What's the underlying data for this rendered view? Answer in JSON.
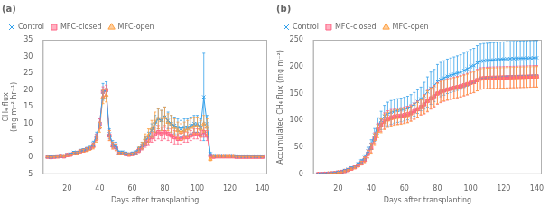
{
  "chart_data": [
    {
      "type": "line",
      "title": "(a)",
      "x_label": "Days after transplanting",
      "y_label": "CH₄ flux\n(mg m⁻² hr⁻¹)",
      "x": [
        8,
        10,
        12,
        14,
        16,
        18,
        20,
        22,
        24,
        26,
        28,
        30,
        32,
        34,
        36,
        38,
        40,
        42,
        44,
        46,
        48,
        50,
        52,
        54,
        56,
        58,
        60,
        62,
        64,
        66,
        68,
        70,
        72,
        74,
        76,
        78,
        80,
        82,
        84,
        86,
        88,
        90,
        92,
        94,
        96,
        98,
        100,
        102,
        104,
        106,
        108,
        110,
        112,
        114,
        116,
        118,
        120,
        122,
        124,
        126,
        128,
        130,
        132,
        134,
        136,
        138,
        140
      ],
      "xlim": [
        5,
        143
      ],
      "xticks": [
        20,
        40,
        60,
        80,
        100,
        120,
        140
      ],
      "ylim": [
        -5,
        35
      ],
      "yticks": [
        -5,
        0,
        5,
        10,
        15,
        20,
        25,
        30,
        35
      ],
      "grid": false,
      "legend": "upper left",
      "series": [
        {
          "name": "Control",
          "marker": "x",
          "values": [
            0.2,
            0.1,
            0.3,
            0.3,
            0.5,
            0.4,
            0.8,
            1.0,
            1.5,
            1.5,
            2.0,
            2.2,
            2.5,
            3.0,
            4.0,
            6.5,
            10.0,
            19.5,
            20.0,
            7.0,
            4.0,
            3.5,
            1.5,
            1.5,
            1.2,
            1.0,
            1.2,
            1.5,
            2.5,
            3.5,
            5.0,
            6.0,
            8.0,
            10.0,
            11.5,
            11.0,
            12.0,
            11.0,
            10.0,
            9.5,
            9.0,
            8.5,
            9.0,
            9.0,
            9.5,
            10.0,
            10.0,
            9.0,
            18.0,
            10.0,
            1.0,
            0.5,
            0.5,
            0.5,
            0.5,
            0.5,
            0.5,
            0.5,
            0.3,
            0.3,
            0.3,
            0.3,
            0.3,
            0.3,
            0.3,
            0.3,
            0.3
          ],
          "errors": [
            0.1,
            0.1,
            0.1,
            0.1,
            0.1,
            0.1,
            0.2,
            0.2,
            0.3,
            0.3,
            0.4,
            0.4,
            0.5,
            0.6,
            0.8,
            1.0,
            1.5,
            2.5,
            2.5,
            1.5,
            1.0,
            1.0,
            0.4,
            0.4,
            0.4,
            0.3,
            0.4,
            0.5,
            0.8,
            1.0,
            1.2,
            1.5,
            2.0,
            2.5,
            3.0,
            3.0,
            3.0,
            2.5,
            2.5,
            2.5,
            2.5,
            2.5,
            2.5,
            2.5,
            2.5,
            2.5,
            2.5,
            2.5,
            13.0,
            2.5,
            0.5,
            0.3,
            0.2,
            0.2,
            0.2,
            0.2,
            0.2,
            0.2,
            0.1,
            0.1,
            0.1,
            0.1,
            0.1,
            0.1,
            0.1,
            0.1,
            0.1
          ]
        },
        {
          "name": "MFC-closed",
          "marker": "square",
          "values": [
            0.2,
            0.1,
            0.2,
            0.3,
            0.4,
            0.3,
            0.7,
            0.8,
            1.2,
            1.3,
            1.8,
            2.0,
            2.3,
            2.8,
            3.5,
            6.0,
            10.0,
            19.5,
            20.0,
            6.5,
            3.5,
            3.0,
            1.2,
            1.2,
            1.0,
            0.8,
            1.0,
            1.2,
            2.0,
            3.0,
            4.0,
            5.0,
            6.0,
            7.0,
            7.5,
            7.0,
            7.5,
            7.0,
            6.5,
            6.0,
            5.5,
            5.5,
            6.0,
            6.0,
            6.5,
            7.0,
            7.0,
            6.5,
            7.5,
            6.5,
            0.5,
            0.2,
            0.3,
            0.3,
            0.3,
            0.3,
            0.3,
            0.3,
            0.2,
            0.2,
            0.2,
            0.2,
            0.2,
            0.2,
            0.2,
            0.2,
            0.2
          ],
          "errors": [
            0.1,
            0.1,
            0.1,
            0.1,
            0.1,
            0.1,
            0.2,
            0.2,
            0.3,
            0.3,
            0.4,
            0.4,
            0.5,
            0.6,
            0.8,
            1.0,
            1.5,
            1.5,
            1.5,
            1.5,
            1.0,
            1.0,
            0.3,
            0.3,
            0.3,
            0.3,
            0.3,
            0.4,
            0.6,
            0.8,
            1.0,
            1.2,
            1.5,
            2.0,
            2.0,
            2.0,
            2.0,
            2.0,
            2.0,
            2.0,
            1.5,
            1.5,
            1.5,
            1.5,
            1.5,
            1.5,
            1.5,
            1.5,
            1.5,
            1.5,
            0.4,
            0.2,
            0.2,
            0.2,
            0.2,
            0.2,
            0.2,
            0.2,
            0.1,
            0.1,
            0.1,
            0.1,
            0.1,
            0.1,
            0.1,
            0.1,
            0.1
          ]
        },
        {
          "name": "MFC-open",
          "marker": "triangle",
          "values": [
            0.2,
            0.1,
            0.2,
            0.2,
            0.4,
            0.3,
            0.6,
            0.8,
            1.2,
            1.3,
            1.8,
            2.0,
            2.2,
            2.7,
            3.3,
            5.5,
            9.0,
            18.0,
            18.5,
            6.5,
            3.5,
            3.0,
            1.2,
            1.2,
            1.0,
            0.8,
            1.0,
            1.2,
            2.5,
            3.5,
            5.5,
            6.5,
            8.5,
            10.5,
            11.5,
            11.0,
            12.0,
            10.5,
            10.0,
            9.0,
            8.0,
            7.5,
            8.0,
            8.5,
            9.0,
            9.5,
            9.5,
            8.5,
            10.0,
            9.0,
            -0.5,
            0.3,
            0.3,
            0.3,
            0.3,
            0.3,
            0.3,
            0.3,
            0.2,
            0.2,
            0.2,
            0.2,
            0.2,
            0.2,
            0.2,
            0.2,
            0.2
          ],
          "errors": [
            0.1,
            0.1,
            0.1,
            0.1,
            0.1,
            0.1,
            0.2,
            0.2,
            0.3,
            0.3,
            0.4,
            0.4,
            0.5,
            0.6,
            0.8,
            1.0,
            1.5,
            2.0,
            2.0,
            1.5,
            1.0,
            1.0,
            0.3,
            0.3,
            0.3,
            0.3,
            0.3,
            0.4,
            0.8,
            1.0,
            1.5,
            2.0,
            2.5,
            3.0,
            3.0,
            3.0,
            3.0,
            2.5,
            2.5,
            2.5,
            2.5,
            2.5,
            2.5,
            2.5,
            2.5,
            2.5,
            2.5,
            2.5,
            2.5,
            2.5,
            0.5,
            0.2,
            0.2,
            0.2,
            0.2,
            0.2,
            0.2,
            0.2,
            0.1,
            0.1,
            0.1,
            0.1,
            0.1,
            0.1,
            0.1,
            0.1,
            0.1
          ]
        }
      ]
    },
    {
      "type": "line",
      "title": "(b)",
      "x_label": "Days after transplanting",
      "y_label": "Accumulated CH₄ flux (mg m⁻²)",
      "x": [
        8,
        10,
        12,
        14,
        16,
        18,
        20,
        22,
        24,
        26,
        28,
        30,
        32,
        34,
        36,
        38,
        40,
        42,
        44,
        46,
        48,
        50,
        52,
        54,
        56,
        58,
        60,
        62,
        64,
        66,
        68,
        70,
        72,
        74,
        76,
        78,
        80,
        82,
        84,
        86,
        88,
        90,
        92,
        94,
        96,
        98,
        100,
        102,
        104,
        106,
        108,
        110,
        112,
        114,
        116,
        118,
        120,
        122,
        124,
        126,
        128,
        130,
        132,
        134,
        136,
        138,
        140
      ],
      "xlim": [
        5,
        143
      ],
      "xticks": [
        20,
        40,
        60,
        80,
        100,
        120,
        140
      ],
      "ylim": [
        0,
        250
      ],
      "yticks": [
        0,
        50,
        100,
        150,
        200,
        250
      ],
      "grid": false,
      "legend": "upper left",
      "series": [
        {
          "name": "Control",
          "marker": "x",
          "values": [
            0.3,
            0.5,
            0.9,
            1.4,
            2.0,
            2.6,
            3.8,
            5.0,
            7.0,
            9.0,
            12.0,
            15.0,
            19.0,
            24.0,
            31.0,
            43.0,
            55.0,
            73.0,
            90.0,
            100.0,
            108.0,
            112.0,
            115.0,
            117.0,
            118.5,
            119.5,
            121.0,
            123.0,
            126.0,
            130.0,
            135.0,
            140.0,
            146.0,
            153.0,
            160.0,
            165.0,
            172.0,
            176.0,
            179.0,
            182.0,
            184.0,
            186.0,
            188.0,
            190.0,
            193.0,
            196.0,
            200.0,
            202.0,
            207.0,
            210.0,
            211.0,
            211.5,
            212.0,
            212.5,
            213.0,
            213.5,
            214.0,
            214.5,
            214.8,
            215.0,
            215.2,
            215.4,
            215.6,
            215.8,
            216.0,
            216.2,
            216.4
          ],
          "errors": [
            0.1,
            0.1,
            0.2,
            0.2,
            0.3,
            0.4,
            0.5,
            0.7,
            0.9,
            1.2,
            1.5,
            2.0,
            2.5,
            3.5,
            5.0,
            7.0,
            9.0,
            12.0,
            15.0,
            17.0,
            20.0,
            22.0,
            22.0,
            22.0,
            22.0,
            22.0,
            22.0,
            22.0,
            22.0,
            22.0,
            22.0,
            22.0,
            25.0,
            28.0,
            30.0,
            30.0,
            32.0,
            32.0,
            32.0,
            32.0,
            32.0,
            32.0,
            32.0,
            32.0,
            32.0,
            32.0,
            32.0,
            32.0,
            32.0,
            32.0,
            32.0,
            32.0,
            32.0,
            32.0,
            32.0,
            32.0,
            32.0,
            32.0,
            32.0,
            32.0,
            32.0,
            32.0,
            32.0,
            32.0,
            32.0,
            32.0,
            32.0
          ]
        },
        {
          "name": "MFC-closed",
          "marker": "square",
          "values": [
            0.3,
            0.4,
            0.7,
            1.1,
            1.6,
            2.1,
            3.2,
            4.3,
            6.0,
            7.8,
            10.5,
            13.0,
            16.5,
            21.0,
            27.0,
            38.0,
            49.0,
            67.0,
            83.0,
            92.0,
            99.0,
            103.0,
            105.5,
            107.0,
            108.0,
            108.8,
            110.0,
            111.5,
            114.0,
            117.5,
            121.0,
            125.0,
            130.0,
            136.0,
            141.0,
            145.0,
            150.0,
            153.0,
            155.5,
            157.5,
            159.0,
            160.5,
            162.0,
            163.5,
            165.5,
            167.5,
            170.0,
            171.5,
            175.0,
            178.0,
            178.5,
            179.0,
            179.3,
            179.5,
            179.7,
            179.9,
            180.1,
            180.3,
            180.5,
            180.7,
            180.9,
            181.1,
            181.3,
            181.5,
            181.7,
            181.9,
            182.0
          ],
          "errors": [
            0.1,
            0.1,
            0.2,
            0.2,
            0.3,
            0.4,
            0.5,
            0.7,
            0.9,
            1.2,
            1.5,
            2.0,
            2.5,
            3.5,
            5.0,
            7.0,
            9.0,
            10.0,
            12.0,
            13.0,
            15.0,
            15.0,
            15.0,
            15.0,
            15.0,
            15.0,
            15.0,
            15.0,
            15.0,
            15.0,
            15.0,
            15.0,
            18.0,
            20.0,
            20.0,
            20.0,
            20.0,
            20.0,
            20.0,
            20.0,
            20.0,
            20.0,
            20.0,
            20.0,
            20.0,
            20.0,
            20.0,
            20.0,
            20.0,
            20.0,
            20.0,
            20.0,
            20.0,
            20.0,
            20.0,
            20.0,
            20.0,
            20.0,
            20.0,
            20.0,
            20.0,
            20.0,
            20.0,
            20.0,
            20.0,
            20.0,
            20.0
          ]
        },
        {
          "name": "MFC-open",
          "marker": "triangle",
          "values": [
            0.3,
            0.4,
            0.7,
            1.0,
            1.5,
            2.0,
            3.0,
            4.0,
            5.8,
            7.5,
            10.0,
            12.5,
            16.0,
            20.5,
            26.5,
            37.0,
            48.0,
            65.0,
            80.0,
            90.0,
            97.0,
            101.0,
            103.5,
            105.0,
            106.0,
            106.8,
            108.0,
            109.5,
            112.5,
            116.0,
            120.0,
            124.5,
            130.0,
            136.0,
            141.0,
            145.0,
            150.0,
            153.0,
            155.5,
            157.0,
            158.5,
            160.0,
            161.5,
            163.0,
            165.0,
            167.0,
            169.5,
            171.0,
            174.0,
            177.0,
            177.5,
            178.0,
            178.3,
            178.5,
            178.7,
            178.9,
            179.1,
            179.3,
            179.5,
            179.7,
            179.9,
            180.1,
            180.3,
            180.5,
            180.7,
            180.9,
            181.0
          ],
          "errors": [
            0.1,
            0.1,
            0.2,
            0.2,
            0.3,
            0.4,
            0.5,
            0.7,
            0.9,
            1.2,
            1.5,
            2.0,
            2.5,
            3.5,
            5.0,
            7.0,
            9.0,
            10.0,
            12.0,
            13.0,
            14.0,
            14.0,
            14.0,
            14.0,
            14.0,
            14.0,
            14.0,
            14.0,
            14.0,
            14.0,
            14.0,
            14.0,
            17.0,
            19.0,
            19.0,
            19.0,
            19.0,
            19.0,
            19.0,
            19.0,
            19.0,
            19.0,
            19.0,
            19.0,
            19.0,
            19.0,
            19.0,
            19.0,
            19.0,
            19.0,
            19.0,
            19.0,
            19.0,
            19.0,
            19.0,
            19.0,
            19.0,
            19.0,
            19.0,
            19.0,
            19.0,
            19.0,
            19.0,
            19.0,
            19.0,
            19.0,
            19.0
          ]
        }
      ]
    }
  ]
}
